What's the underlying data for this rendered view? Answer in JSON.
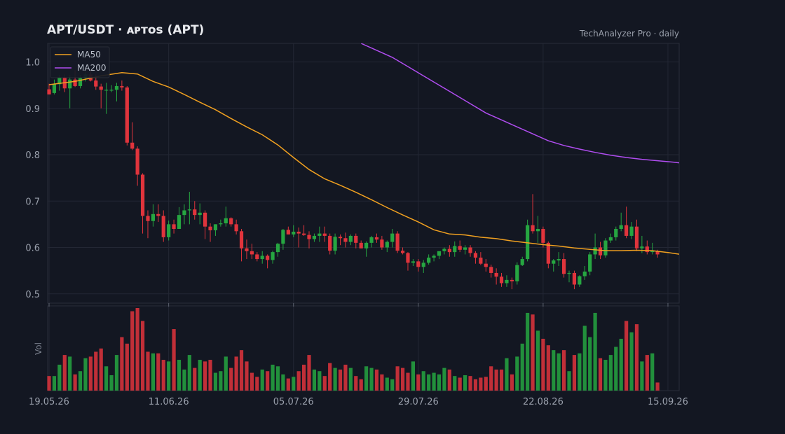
{
  "header": {
    "title": "APT/USDT  ·  ᴀᴘᴛᴏѕ (APT)",
    "source": "TechAnalyzer Pro · daily"
  },
  "colors": {
    "background": "#131722",
    "grid": "#232734",
    "up": "#26a641",
    "down": "#e0343c",
    "ma50": "#f0a020",
    "ma200": "#b04df0"
  },
  "chart_data": {
    "type": "candlestick",
    "x_tick_labels": [
      "19.05.26",
      "11.06.26",
      "05.07.26",
      "29.07.26",
      "22.08.26",
      "15.09.26"
    ],
    "x_tick_days": [
      0,
      23,
      47,
      71,
      95,
      119
    ],
    "price_ylim": [
      0.48,
      1.04
    ],
    "price_ticks": [
      0.5,
      0.6,
      0.7,
      0.8,
      0.9,
      1.0
    ],
    "volume_ylabel": "Vol",
    "grid": true,
    "legend": {
      "position": "top-left",
      "entries": [
        {
          "name": "MA50",
          "color": "#f0a020"
        },
        {
          "name": "MA200",
          "color": "#b04df0"
        }
      ]
    },
    "candles_ohlcv": [
      [
        0.941,
        0.953,
        0.93,
        0.93,
        0.9
      ],
      [
        0.933,
        0.962,
        0.93,
        0.952,
        0.9
      ],
      [
        0.952,
        0.972,
        0.938,
        0.966,
        1.6
      ],
      [
        0.966,
        0.973,
        0.935,
        0.943,
        2.2
      ],
      [
        0.943,
        0.972,
        0.9,
        0.962,
        2.1
      ],
      [
        0.962,
        0.982,
        0.946,
        0.948,
        1.0
      ],
      [
        0.948,
        0.972,
        0.943,
        0.965,
        1.2
      ],
      [
        0.965,
        0.98,
        0.958,
        0.973,
        2.0
      ],
      [
        0.973,
        0.982,
        0.958,
        0.96,
        2.1
      ],
      [
        0.96,
        0.973,
        0.94,
        0.947,
        2.4
      ],
      [
        0.947,
        0.953,
        0.9,
        0.94,
        2.6
      ],
      [
        0.94,
        0.955,
        0.888,
        0.94,
        1.5
      ],
      [
        0.94,
        0.95,
        0.935,
        0.94,
        0.95
      ],
      [
        0.94,
        0.955,
        0.915,
        0.948,
        2.2
      ],
      [
        0.948,
        0.96,
        0.938,
        0.945,
        3.3
      ],
      [
        0.945,
        0.948,
        0.82,
        0.826,
        2.9
      ],
      [
        0.826,
        0.87,
        0.81,
        0.813,
        4.9
      ],
      [
        0.813,
        0.818,
        0.733,
        0.757,
        5.1
      ],
      [
        0.757,
        0.76,
        0.63,
        0.668,
        4.3
      ],
      [
        0.668,
        0.68,
        0.62,
        0.657,
        2.4
      ],
      [
        0.657,
        0.693,
        0.645,
        0.672,
        2.3
      ],
      [
        0.672,
        0.693,
        0.655,
        0.668,
        2.3
      ],
      [
        0.668,
        0.68,
        0.612,
        0.622,
        1.9
      ],
      [
        0.622,
        0.658,
        0.615,
        0.65,
        1.8
      ],
      [
        0.65,
        0.66,
        0.63,
        0.64,
        3.8
      ],
      [
        0.64,
        0.687,
        0.64,
        0.67,
        1.9
      ],
      [
        0.67,
        0.693,
        0.65,
        0.68,
        1.3
      ],
      [
        0.68,
        0.72,
        0.65,
        0.682,
        2.2
      ],
      [
        0.682,
        0.7,
        0.66,
        0.67,
        1.4
      ],
      [
        0.67,
        0.695,
        0.65,
        0.675,
        1.9
      ],
      [
        0.675,
        0.68,
        0.618,
        0.645,
        1.8
      ],
      [
        0.645,
        0.652,
        0.612,
        0.637,
        1.9
      ],
      [
        0.637,
        0.65,
        0.625,
        0.65,
        1.1
      ],
      [
        0.65,
        0.66,
        0.645,
        0.652,
        1.2
      ],
      [
        0.652,
        0.688,
        0.645,
        0.663,
        2.1
      ],
      [
        0.663,
        0.665,
        0.645,
        0.65,
        1.4
      ],
      [
        0.65,
        0.66,
        0.628,
        0.635,
        2.1
      ],
      [
        0.635,
        0.64,
        0.57,
        0.598,
        2.5
      ],
      [
        0.598,
        0.617,
        0.575,
        0.592,
        1.8
      ],
      [
        0.592,
        0.608,
        0.575,
        0.585,
        1.1
      ],
      [
        0.585,
        0.59,
        0.57,
        0.575,
        0.85
      ],
      [
        0.575,
        0.592,
        0.565,
        0.582,
        1.3
      ],
      [
        0.582,
        0.585,
        0.555,
        0.573,
        1.2
      ],
      [
        0.573,
        0.593,
        0.565,
        0.59,
        1.6
      ],
      [
        0.59,
        0.61,
        0.58,
        0.608,
        1.5
      ],
      [
        0.608,
        0.64,
        0.595,
        0.638,
        1.0
      ],
      [
        0.638,
        0.645,
        0.628,
        0.628,
        0.75
      ],
      [
        0.628,
        0.648,
        0.622,
        0.634,
        0.85
      ],
      [
        0.634,
        0.643,
        0.6,
        0.63,
        1.2
      ],
      [
        0.63,
        0.648,
        0.625,
        0.627,
        1.6
      ],
      [
        0.627,
        0.635,
        0.598,
        0.618,
        2.2
      ],
      [
        0.618,
        0.63,
        0.612,
        0.625,
        1.3
      ],
      [
        0.625,
        0.645,
        0.612,
        0.63,
        1.2
      ],
      [
        0.63,
        0.645,
        0.612,
        0.625,
        0.9
      ],
      [
        0.625,
        0.63,
        0.585,
        0.593,
        1.7
      ],
      [
        0.593,
        0.63,
        0.585,
        0.623,
        1.4
      ],
      [
        0.623,
        0.628,
        0.605,
        0.62,
        1.3
      ],
      [
        0.62,
        0.632,
        0.6,
        0.612,
        1.6
      ],
      [
        0.612,
        0.628,
        0.605,
        0.625,
        1.4
      ],
      [
        0.625,
        0.63,
        0.598,
        0.61,
        0.9
      ],
      [
        0.61,
        0.615,
        0.598,
        0.598,
        0.7
      ],
      [
        0.598,
        0.613,
        0.58,
        0.61,
        1.5
      ],
      [
        0.61,
        0.625,
        0.6,
        0.622,
        1.4
      ],
      [
        0.622,
        0.63,
        0.61,
        0.617,
        1.3
      ],
      [
        0.617,
        0.625,
        0.595,
        0.6,
        1.0
      ],
      [
        0.6,
        0.615,
        0.59,
        0.612,
        0.8
      ],
      [
        0.612,
        0.64,
        0.6,
        0.63,
        0.7
      ],
      [
        0.63,
        0.635,
        0.588,
        0.593,
        1.5
      ],
      [
        0.593,
        0.6,
        0.585,
        0.588,
        1.4
      ],
      [
        0.588,
        0.59,
        0.55,
        0.567,
        1.1
      ],
      [
        0.567,
        0.575,
        0.56,
        0.57,
        1.8
      ],
      [
        0.57,
        0.575,
        0.548,
        0.558,
        1.0
      ],
      [
        0.558,
        0.573,
        0.545,
        0.567,
        1.2
      ],
      [
        0.567,
        0.585,
        0.563,
        0.578,
        1.0
      ],
      [
        0.578,
        0.585,
        0.57,
        0.582,
        1.1
      ],
      [
        0.582,
        0.59,
        0.575,
        0.592,
        1.0
      ],
      [
        0.592,
        0.6,
        0.585,
        0.597,
        1.4
      ],
      [
        0.597,
        0.605,
        0.58,
        0.59,
        1.3
      ],
      [
        0.59,
        0.613,
        0.58,
        0.603,
        0.9
      ],
      [
        0.603,
        0.615,
        0.59,
        0.595,
        0.8
      ],
      [
        0.595,
        0.605,
        0.585,
        0.6,
        0.95
      ],
      [
        0.6,
        0.605,
        0.58,
        0.588,
        0.9
      ],
      [
        0.588,
        0.592,
        0.565,
        0.578,
        0.7
      ],
      [
        0.578,
        0.59,
        0.562,
        0.565,
        0.8
      ],
      [
        0.565,
        0.575,
        0.548,
        0.558,
        0.85
      ],
      [
        0.558,
        0.563,
        0.535,
        0.545,
        1.5
      ],
      [
        0.545,
        0.555,
        0.52,
        0.537,
        1.3
      ],
      [
        0.537,
        0.545,
        0.515,
        0.523,
        1.3
      ],
      [
        0.523,
        0.54,
        0.515,
        0.53,
        2.0
      ],
      [
        0.53,
        0.535,
        0.51,
        0.527,
        1.0
      ],
      [
        0.527,
        0.568,
        0.52,
        0.562,
        2.1
      ],
      [
        0.562,
        0.58,
        0.56,
        0.575,
        2.9
      ],
      [
        0.575,
        0.66,
        0.57,
        0.648,
        4.8
      ],
      [
        0.648,
        0.715,
        0.63,
        0.635,
        4.7
      ],
      [
        0.635,
        0.668,
        0.61,
        0.64,
        3.7
      ],
      [
        0.64,
        0.645,
        0.6,
        0.61,
        3.2
      ],
      [
        0.61,
        0.613,
        0.555,
        0.565,
        2.8
      ],
      [
        0.565,
        0.575,
        0.548,
        0.572,
        2.5
      ],
      [
        0.572,
        0.59,
        0.56,
        0.575,
        2.3
      ],
      [
        0.575,
        0.588,
        0.535,
        0.543,
        2.5
      ],
      [
        0.543,
        0.55,
        0.525,
        0.545,
        1.2
      ],
      [
        0.545,
        0.55,
        0.51,
        0.52,
        2.2
      ],
      [
        0.52,
        0.54,
        0.515,
        0.538,
        2.3
      ],
      [
        0.538,
        0.56,
        0.53,
        0.548,
        4.0
      ],
      [
        0.548,
        0.59,
        0.54,
        0.585,
        3.3
      ],
      [
        0.585,
        0.63,
        0.575,
        0.6,
        4.8
      ],
      [
        0.6,
        0.612,
        0.575,
        0.583,
        2.0
      ],
      [
        0.583,
        0.62,
        0.578,
        0.615,
        1.9
      ],
      [
        0.615,
        0.63,
        0.61,
        0.622,
        2.2
      ],
      [
        0.622,
        0.645,
        0.615,
        0.64,
        2.7
      ],
      [
        0.64,
        0.675,
        0.635,
        0.648,
        3.2
      ],
      [
        0.648,
        0.688,
        0.62,
        0.625,
        4.3
      ],
      [
        0.625,
        0.655,
        0.618,
        0.645,
        3.6
      ],
      [
        0.645,
        0.66,
        0.592,
        0.598,
        4.1
      ],
      [
        0.598,
        0.625,
        0.588,
        0.602,
        1.8
      ],
      [
        0.602,
        0.615,
        0.585,
        0.59,
        2.2
      ],
      [
        0.59,
        0.61,
        0.585,
        0.592,
        2.3
      ],
      [
        0.592,
        0.595,
        0.578,
        0.585,
        0.5
      ]
    ],
    "ma50_points": [
      [
        0,
        0.951
      ],
      [
        5,
        0.958
      ],
      [
        10,
        0.97
      ],
      [
        14,
        0.977
      ],
      [
        17,
        0.974
      ],
      [
        20,
        0.958
      ],
      [
        23,
        0.946
      ],
      [
        26,
        0.93
      ],
      [
        29,
        0.913
      ],
      [
        32,
        0.897
      ],
      [
        35,
        0.878
      ],
      [
        38,
        0.86
      ],
      [
        41,
        0.843
      ],
      [
        44,
        0.821
      ],
      [
        47,
        0.794
      ],
      [
        50,
        0.768
      ],
      [
        53,
        0.748
      ],
      [
        56,
        0.734
      ],
      [
        59,
        0.719
      ],
      [
        62,
        0.703
      ],
      [
        65,
        0.686
      ],
      [
        68,
        0.67
      ],
      [
        71,
        0.655
      ],
      [
        74,
        0.638
      ],
      [
        77,
        0.629
      ],
      [
        80,
        0.627
      ],
      [
        83,
        0.622
      ],
      [
        86,
        0.619
      ],
      [
        89,
        0.614
      ],
      [
        92,
        0.61
      ],
      [
        95,
        0.606
      ],
      [
        98,
        0.603
      ],
      [
        101,
        0.599
      ],
      [
        104,
        0.596
      ],
      [
        107,
        0.593
      ],
      [
        110,
        0.593
      ],
      [
        113,
        0.594
      ],
      [
        116,
        0.593
      ],
      [
        119,
        0.589
      ],
      [
        122,
        0.584
      ],
      [
        125,
        0.581
      ],
      [
        128,
        0.58
      ],
      [
        131,
        0.582
      ],
      [
        134,
        0.583
      ],
      [
        137,
        0.582
      ],
      [
        140,
        0.581
      ]
    ],
    "ma200_points": [
      [
        60,
        1.04
      ],
      [
        63,
        1.025
      ],
      [
        66,
        1.01
      ],
      [
        69,
        0.99
      ],
      [
        72,
        0.97
      ],
      [
        75,
        0.95
      ],
      [
        78,
        0.93
      ],
      [
        81,
        0.91
      ],
      [
        84,
        0.89
      ],
      [
        87,
        0.875
      ],
      [
        90,
        0.86
      ],
      [
        93,
        0.845
      ],
      [
        96,
        0.83
      ],
      [
        99,
        0.82
      ],
      [
        102,
        0.812
      ],
      [
        105,
        0.805
      ],
      [
        108,
        0.799
      ],
      [
        111,
        0.794
      ],
      [
        114,
        0.79
      ],
      [
        117,
        0.787
      ],
      [
        120,
        0.784
      ],
      [
        123,
        0.78
      ],
      [
        125,
        0.775
      ]
    ]
  }
}
